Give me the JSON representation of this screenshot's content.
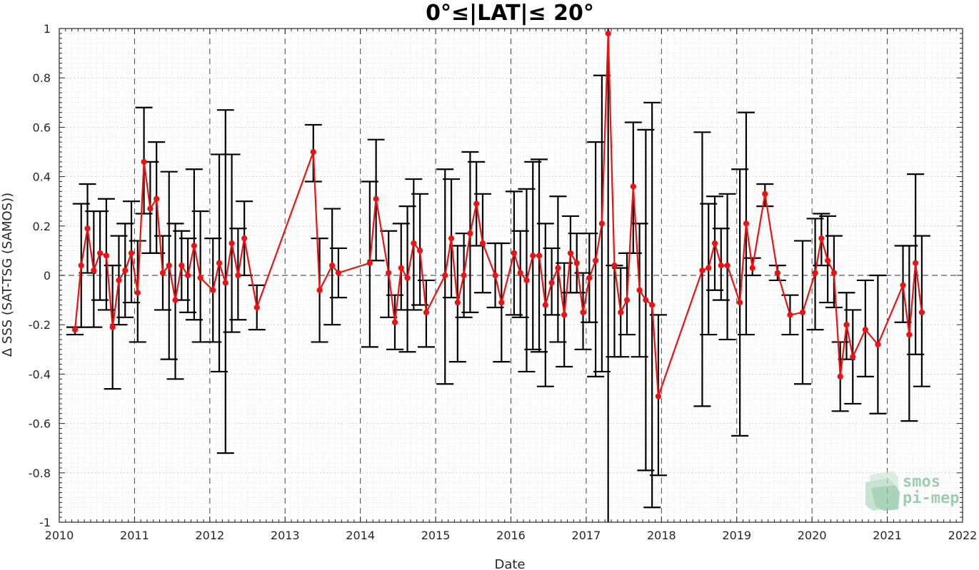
{
  "chart_data": {
    "type": "line",
    "title": "0°≤|LAT|≤ 20°",
    "xlabel": "Date",
    "ylabel": "Δ SSS (SAT-TSG (SAMOS))",
    "xlim": [
      2010,
      2022
    ],
    "ylim": [
      -1,
      1
    ],
    "x_ticks": [
      "2010",
      "2011",
      "2012",
      "2013",
      "2014",
      "2015",
      "2016",
      "2017",
      "2018",
      "2019",
      "2020",
      "2021",
      "2022"
    ],
    "y_ticks": [
      "-1",
      "-0.8",
      "-0.6",
      "-0.4",
      "-0.2",
      "0",
      "0.2",
      "0.4",
      "0.6",
      "0.8",
      "1"
    ],
    "grid": true,
    "reference_line": 0,
    "series": [
      {
        "color": "#ee1111",
        "errorbar_color": "#000000",
        "points": [
          {
            "x": "2010-03",
            "y": -0.22,
            "lo": -0.24,
            "hi": -0.21
          },
          {
            "x": "2010-04",
            "y": 0.04,
            "lo": -0.21,
            "hi": 0.29
          },
          {
            "x": "2010-05",
            "y": 0.19,
            "lo": 0.01,
            "hi": 0.37
          },
          {
            "x": "2010-06",
            "y": 0.02,
            "lo": -0.21,
            "hi": 0.26
          },
          {
            "x": "2010-07",
            "y": 0.09,
            "lo": -0.1,
            "hi": 0.26
          },
          {
            "x": "2010-08",
            "y": 0.08,
            "lo": -0.14,
            "hi": 0.31
          },
          {
            "x": "2010-09",
            "y": -0.21,
            "lo": -0.46,
            "hi": 0.04
          },
          {
            "x": "2010-10",
            "y": -0.02,
            "lo": -0.2,
            "hi": 0.16
          },
          {
            "x": "2010-11",
            "y": 0.02,
            "lo": -0.17,
            "hi": 0.21
          },
          {
            "x": "2010-12",
            "y": 0.09,
            "lo": -0.11,
            "hi": 0.3
          },
          {
            "x": "2011-01",
            "y": -0.07,
            "lo": -0.27,
            "hi": 0.14
          },
          {
            "x": "2011-02",
            "y": 0.46,
            "lo": 0.25,
            "hi": 0.68
          },
          {
            "x": "2011-03",
            "y": 0.27,
            "lo": 0.09,
            "hi": 0.46
          },
          {
            "x": "2011-04",
            "y": 0.31,
            "lo": 0.09,
            "hi": 0.54
          },
          {
            "x": "2011-05",
            "y": 0.01,
            "lo": -0.14,
            "hi": 0.16
          },
          {
            "x": "2011-06",
            "y": 0.04,
            "lo": -0.34,
            "hi": 0.42
          },
          {
            "x": "2011-07",
            "y": -0.1,
            "lo": -0.42,
            "hi": 0.21
          },
          {
            "x": "2011-08",
            "y": 0.04,
            "lo": -0.1,
            "hi": 0.18
          },
          {
            "x": "2011-09",
            "y": 0.0,
            "lo": -0.15,
            "hi": 0.15
          },
          {
            "x": "2011-10",
            "y": 0.12,
            "lo": -0.18,
            "hi": 0.43
          },
          {
            "x": "2011-11",
            "y": -0.01,
            "lo": -0.27,
            "hi": 0.26
          },
          {
            "x": "2012-01",
            "y": -0.06,
            "lo": -0.27,
            "hi": 0.15
          },
          {
            "x": "2012-02",
            "y": 0.05,
            "lo": -0.39,
            "hi": 0.49
          },
          {
            "x": "2012-03",
            "y": -0.03,
            "lo": -0.72,
            "hi": 0.67
          },
          {
            "x": "2012-04",
            "y": 0.13,
            "lo": -0.23,
            "hi": 0.49
          },
          {
            "x": "2012-05",
            "y": 0.0,
            "lo": -0.18,
            "hi": 0.19
          },
          {
            "x": "2012-06",
            "y": 0.15,
            "lo": 0.0,
            "hi": 0.3
          },
          {
            "x": "2012-08",
            "y": -0.13,
            "lo": -0.22,
            "hi": -0.04
          },
          {
            "x": "2013-05",
            "y": 0.5,
            "lo": 0.38,
            "hi": 0.61
          },
          {
            "x": "2013-06",
            "y": -0.06,
            "lo": -0.27,
            "hi": 0.15
          },
          {
            "x": "2013-08",
            "y": 0.04,
            "lo": -0.2,
            "hi": 0.27
          },
          {
            "x": "2013-09",
            "y": 0.01,
            "lo": -0.09,
            "hi": 0.11
          },
          {
            "x": "2014-02",
            "y": 0.05,
            "lo": -0.29,
            "hi": 0.38
          },
          {
            "x": "2014-03",
            "y": 0.31,
            "lo": 0.06,
            "hi": 0.55
          },
          {
            "x": "2014-05",
            "y": 0.01,
            "lo": -0.17,
            "hi": 0.18
          },
          {
            "x": "2014-06",
            "y": -0.19,
            "lo": -0.3,
            "hi": -0.08
          },
          {
            "x": "2014-07",
            "y": 0.03,
            "lo": -0.14,
            "hi": 0.21
          },
          {
            "x": "2014-08",
            "y": -0.01,
            "lo": -0.31,
            "hi": 0.28
          },
          {
            "x": "2014-09",
            "y": 0.13,
            "lo": -0.14,
            "hi": 0.39
          },
          {
            "x": "2014-10",
            "y": 0.1,
            "lo": -0.12,
            "hi": 0.33
          },
          {
            "x": "2014-11",
            "y": -0.15,
            "lo": -0.29,
            "hi": -0.02
          },
          {
            "x": "2015-02",
            "y": 0.0,
            "lo": -0.44,
            "hi": 0.43
          },
          {
            "x": "2015-03",
            "y": 0.15,
            "lo": -0.09,
            "hi": 0.39
          },
          {
            "x": "2015-04",
            "y": -0.11,
            "lo": -0.35,
            "hi": 0.12
          },
          {
            "x": "2015-05",
            "y": 0.0,
            "lo": -0.17,
            "hi": 0.17
          },
          {
            "x": "2015-06",
            "y": 0.17,
            "lo": -0.15,
            "hi": 0.5
          },
          {
            "x": "2015-07",
            "y": 0.29,
            "lo": 0.12,
            "hi": 0.46
          },
          {
            "x": "2015-08",
            "y": 0.13,
            "lo": -0.07,
            "hi": 0.33
          },
          {
            "x": "2015-10",
            "y": 0.0,
            "lo": -0.13,
            "hi": 0.13
          },
          {
            "x": "2015-11",
            "y": -0.11,
            "lo": -0.35,
            "hi": 0.13
          },
          {
            "x": "2016-01",
            "y": 0.09,
            "lo": -0.16,
            "hi": 0.34
          },
          {
            "x": "2016-02",
            "y": 0.01,
            "lo": -0.17,
            "hi": 0.18
          },
          {
            "x": "2016-03",
            "y": -0.02,
            "lo": -0.39,
            "hi": 0.35
          },
          {
            "x": "2016-04",
            "y": 0.08,
            "lo": -0.3,
            "hi": 0.46
          },
          {
            "x": "2016-05",
            "y": 0.08,
            "lo": -0.31,
            "hi": 0.47
          },
          {
            "x": "2016-06",
            "y": -0.12,
            "lo": -0.45,
            "hi": 0.21
          },
          {
            "x": "2016-07",
            "y": -0.03,
            "lo": -0.16,
            "hi": 0.11
          },
          {
            "x": "2016-08",
            "y": 0.03,
            "lo": -0.27,
            "hi": 0.32
          },
          {
            "x": "2016-09",
            "y": -0.16,
            "lo": -0.37,
            "hi": 0.05
          },
          {
            "x": "2016-10",
            "y": 0.09,
            "lo": -0.07,
            "hi": 0.24
          },
          {
            "x": "2016-11",
            "y": 0.05,
            "lo": -0.07,
            "hi": 0.17
          },
          {
            "x": "2016-12",
            "y": -0.15,
            "lo": -0.3,
            "hi": 0.01
          },
          {
            "x": "2017-01",
            "y": -0.01,
            "lo": -0.19,
            "hi": 0.17
          },
          {
            "x": "2017-02",
            "y": 0.06,
            "lo": -0.41,
            "hi": 0.54
          },
          {
            "x": "2017-03",
            "y": 0.21,
            "lo": -0.39,
            "hi": 0.81
          },
          {
            "x": "2017-04",
            "y": 0.98,
            "lo": -1.0,
            "hi": 1.0
          },
          {
            "x": "2017-05",
            "y": 0.04,
            "lo": -0.33,
            "hi": 0.04
          },
          {
            "x": "2017-06",
            "y": -0.15,
            "lo": -0.33,
            "hi": 0.03
          },
          {
            "x": "2017-07",
            "y": -0.1,
            "lo": -0.24,
            "hi": 0.09
          },
          {
            "x": "2017-08",
            "y": 0.36,
            "lo": 0.09,
            "hi": 0.62
          },
          {
            "x": "2017-09",
            "y": -0.06,
            "lo": -0.33,
            "hi": 0.21
          },
          {
            "x": "2017-10",
            "y": -0.1,
            "lo": -0.79,
            "hi": 0.59
          },
          {
            "x": "2017-11",
            "y": -0.12,
            "lo": -0.94,
            "hi": 0.7
          },
          {
            "x": "2017-12",
            "y": -0.49,
            "lo": -0.81,
            "hi": -0.16
          },
          {
            "x": "2018-07",
            "y": 0.02,
            "lo": -0.53,
            "hi": 0.58
          },
          {
            "x": "2018-08",
            "y": 0.03,
            "lo": -0.24,
            "hi": 0.29
          },
          {
            "x": "2018-09",
            "y": 0.13,
            "lo": -0.06,
            "hi": 0.32
          },
          {
            "x": "2018-10",
            "y": 0.04,
            "lo": -0.1,
            "hi": 0.19
          },
          {
            "x": "2018-11",
            "y": 0.04,
            "lo": -0.26,
            "hi": 0.33
          },
          {
            "x": "2019-01",
            "y": -0.11,
            "lo": -0.65,
            "hi": 0.43
          },
          {
            "x": "2019-02",
            "y": 0.21,
            "lo": -0.24,
            "hi": 0.66
          },
          {
            "x": "2019-03",
            "y": 0.03,
            "lo": 0.0,
            "hi": 0.07
          },
          {
            "x": "2019-05",
            "y": 0.33,
            "lo": 0.28,
            "hi": 0.37
          },
          {
            "x": "2019-07",
            "y": 0.01,
            "lo": -0.02,
            "hi": 0.04
          },
          {
            "x": "2019-09",
            "y": -0.16,
            "lo": -0.24,
            "hi": -0.08
          },
          {
            "x": "2019-11",
            "y": -0.15,
            "lo": -0.44,
            "hi": 0.14
          },
          {
            "x": "2020-01",
            "y": 0.01,
            "lo": -0.22,
            "hi": 0.23
          },
          {
            "x": "2020-02",
            "y": 0.15,
            "lo": 0.04,
            "hi": 0.25
          },
          {
            "x": "2020-03",
            "y": 0.06,
            "lo": -0.11,
            "hi": 0.24
          },
          {
            "x": "2020-04",
            "y": 0.01,
            "lo": -0.13,
            "hi": 0.16
          },
          {
            "x": "2020-05",
            "y": -0.41,
            "lo": -0.55,
            "hi": -0.27
          },
          {
            "x": "2020-06",
            "y": -0.2,
            "lo": -0.34,
            "hi": -0.07
          },
          {
            "x": "2020-07",
            "y": -0.33,
            "lo": -0.52,
            "hi": -0.14
          },
          {
            "x": "2020-09",
            "y": -0.22,
            "lo": -0.41,
            "hi": -0.02
          },
          {
            "x": "2020-11",
            "y": -0.28,
            "lo": -0.56,
            "hi": 0.0
          },
          {
            "x": "2021-03",
            "y": -0.04,
            "lo": -0.19,
            "hi": 0.12
          },
          {
            "x": "2021-04",
            "y": -0.24,
            "lo": -0.59,
            "hi": 0.12
          },
          {
            "x": "2021-05",
            "y": 0.05,
            "lo": -0.32,
            "hi": 0.41
          },
          {
            "x": "2021-06",
            "y": -0.15,
            "lo": -0.45,
            "hi": 0.16
          }
        ]
      }
    ]
  },
  "logo": {
    "line1": "smos",
    "line2": "pi-mep",
    "icon": "cube-stack-icon",
    "color": "#9ccfb0"
  }
}
